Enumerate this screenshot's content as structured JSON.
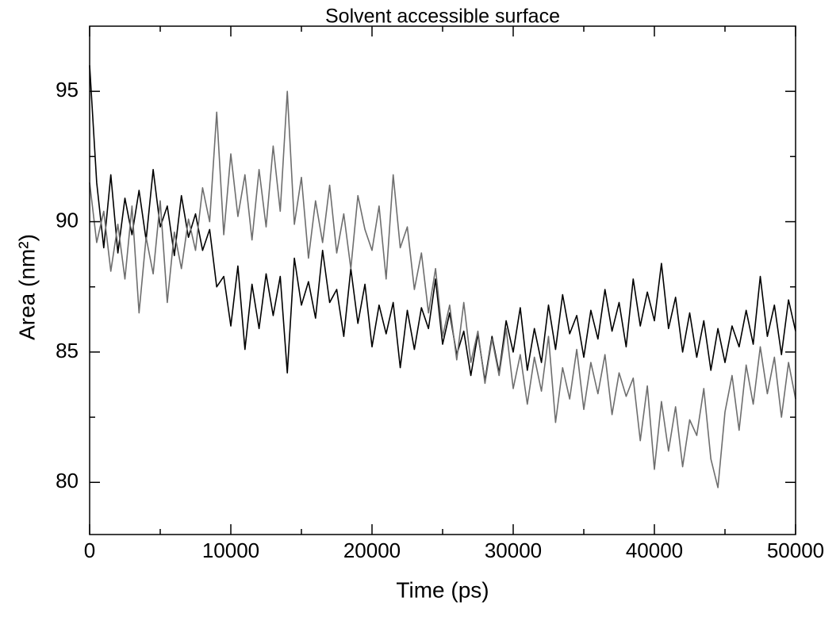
{
  "chart_data": {
    "type": "line",
    "title": "Solvent accessible surface",
    "x_label": "Time (ps)",
    "y_label": "Area (nm²)",
    "x": [
      0,
      500,
      1000,
      1500,
      2000,
      2500,
      3000,
      3500,
      4000,
      4500,
      5000,
      5500,
      6000,
      6500,
      7000,
      7500,
      8000,
      8500,
      9000,
      9500,
      10000,
      10500,
      11000,
      11500,
      12000,
      12500,
      13000,
      13500,
      14000,
      14500,
      15000,
      15500,
      16000,
      16500,
      17000,
      17500,
      18000,
      18500,
      19000,
      19500,
      20000,
      20500,
      21000,
      21500,
      22000,
      22500,
      23000,
      23500,
      24000,
      24500,
      25000,
      25500,
      26000,
      26500,
      27000,
      27500,
      28000,
      28500,
      29000,
      29500,
      30000,
      30500,
      31000,
      31500,
      32000,
      32500,
      33000,
      33500,
      34000,
      34500,
      35000,
      35500,
      36000,
      36500,
      37000,
      37500,
      38000,
      38500,
      39000,
      39500,
      40000,
      40500,
      41000,
      41500,
      42000,
      42500,
      43000,
      43500,
      44000,
      44500,
      45000,
      45500,
      46000,
      46500,
      47000,
      47500,
      48000,
      48500,
      49000,
      49500,
      50000
    ],
    "series": [
      {
        "color": "#000000",
        "values": [
          96.0,
          91.5,
          89.0,
          91.8,
          88.8,
          90.9,
          89.5,
          91.2,
          89.3,
          92.0,
          89.8,
          90.6,
          88.7,
          91.0,
          89.4,
          90.3,
          88.9,
          89.7,
          87.5,
          87.9,
          86.0,
          88.3,
          85.1,
          87.6,
          85.9,
          88.0,
          86.4,
          87.9,
          84.2,
          88.6,
          86.8,
          87.7,
          86.3,
          88.9,
          86.9,
          87.4,
          85.6,
          88.2,
          86.1,
          87.6,
          85.2,
          86.8,
          85.7,
          86.9,
          84.4,
          86.6,
          85.1,
          86.7,
          85.9,
          87.8,
          85.3,
          86.5,
          84.9,
          85.8,
          84.1,
          85.7,
          83.9,
          85.6,
          84.2,
          86.2,
          85.0,
          86.7,
          84.3,
          85.9,
          84.6,
          86.8,
          85.1,
          87.2,
          85.7,
          86.4,
          84.8,
          86.6,
          85.5,
          87.4,
          85.8,
          86.9,
          85.2,
          87.8,
          86.0,
          87.3,
          86.2,
          88.4,
          85.9,
          87.1,
          85.0,
          86.5,
          84.8,
          86.2,
          84.3,
          85.9,
          84.6,
          86.0,
          85.2,
          86.6,
          85.3,
          87.9,
          85.6,
          86.8,
          84.9,
          87.0,
          85.8
        ]
      },
      {
        "color": "#6e6e6e",
        "values": [
          91.5,
          89.2,
          90.4,
          88.1,
          89.9,
          87.8,
          90.6,
          86.5,
          89.4,
          88.0,
          90.8,
          86.9,
          89.6,
          88.2,
          90.1,
          88.9,
          91.3,
          90.0,
          94.2,
          89.5,
          92.6,
          90.2,
          91.8,
          89.3,
          92.0,
          89.8,
          92.9,
          90.4,
          95.0,
          89.9,
          91.7,
          88.6,
          90.8,
          89.2,
          91.4,
          88.8,
          90.3,
          88.2,
          91.0,
          89.7,
          88.9,
          90.6,
          87.8,
          91.8,
          89.0,
          89.8,
          87.4,
          88.8,
          86.5,
          88.2,
          85.6,
          86.8,
          84.7,
          86.9,
          84.6,
          85.8,
          83.8,
          85.5,
          84.1,
          85.9,
          83.6,
          84.9,
          83.0,
          84.8,
          83.5,
          85.6,
          82.3,
          84.4,
          83.2,
          85.1,
          82.8,
          84.6,
          83.4,
          84.9,
          82.6,
          84.2,
          83.3,
          84.0,
          81.6,
          83.7,
          80.5,
          83.1,
          81.2,
          82.9,
          80.6,
          82.4,
          81.8,
          83.6,
          80.9,
          79.8,
          82.7,
          84.1,
          82.0,
          84.5,
          83.0,
          85.2,
          83.4,
          84.8,
          82.5,
          84.6,
          83.2
        ]
      }
    ],
    "xlim": [
      0,
      50000
    ],
    "xticks": [
      0,
      10000,
      20000,
      30000,
      40000,
      50000
    ],
    "minor_xticks": [
      5000,
      15000,
      25000,
      35000,
      45000
    ],
    "ylim": [
      78,
      97.5
    ],
    "yticks": [
      80,
      85,
      90,
      95
    ],
    "minor_yticks": [
      82.5,
      87.5,
      92.5
    ],
    "grid": false
  }
}
